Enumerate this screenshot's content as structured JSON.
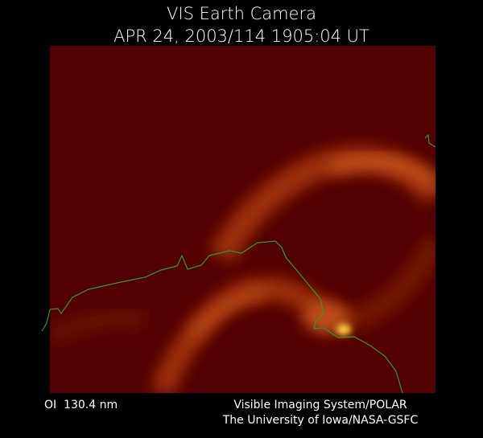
{
  "header": {
    "title": "VIS Earth Camera",
    "timestamp": "APR 24, 2003/114 1905:04 UT"
  },
  "footer": {
    "band": "OI  130.4 nm",
    "instrument": "Visible Imaging System/POLAR",
    "institution": "The University of Iowa/NASA-GSFC"
  }
}
